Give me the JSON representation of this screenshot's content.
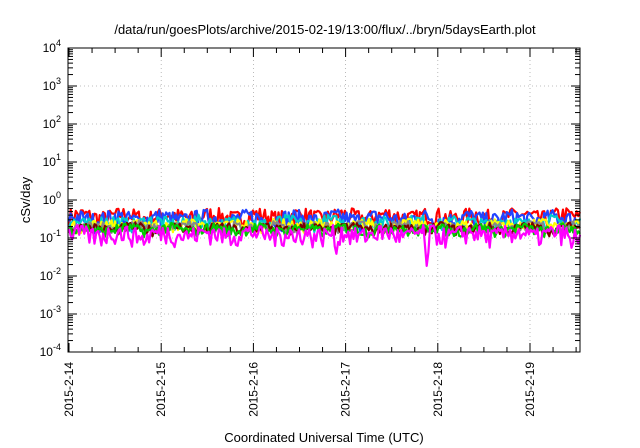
{
  "chart_data": {
    "type": "line",
    "title": "/data/run/goesPlots/archive/2015-02-19/13:00/flux/../bryn/5daysEarth.plot",
    "xlabel": "Coordinated Universal Time (UTC)",
    "ylabel": "cSv/day",
    "yscale": "log",
    "ylim": [
      0.0001,
      10000
    ],
    "xlim": [
      "2015-02-14 00:00",
      "2015-02-19 13:00"
    ],
    "x_ticks": [
      "2015-2-14",
      "2015-2-15",
      "2015-2-16",
      "2015-2-17",
      "2015-2-18",
      "2015-2-19"
    ],
    "y_ticks": [
      {
        "value": 0.0001,
        "base": "10",
        "exp": "-4"
      },
      {
        "value": 0.001,
        "base": "10",
        "exp": "-3"
      },
      {
        "value": 0.01,
        "base": "10",
        "exp": "-2"
      },
      {
        "value": 0.1,
        "base": "10",
        "exp": "-1"
      },
      {
        "value": 1,
        "base": "10",
        "exp": "0"
      },
      {
        "value": 10,
        "base": "10",
        "exp": "1"
      },
      {
        "value": 100,
        "base": "10",
        "exp": "2"
      },
      {
        "value": 1000,
        "base": "10",
        "exp": "3"
      },
      {
        "value": 10000,
        "base": "10",
        "exp": "4"
      }
    ],
    "grid": true,
    "series": [
      {
        "color": "#ff0000",
        "base": 0.38,
        "jitter": 0.22,
        "dips": []
      },
      {
        "color": "#2244ff",
        "base": 0.33,
        "jitter": 0.2,
        "dips": []
      },
      {
        "color": "#00cccc",
        "base": 0.26,
        "jitter": 0.12,
        "dips": []
      },
      {
        "color": "#ffff00",
        "base": 0.22,
        "jitter": 0.08,
        "dips": []
      },
      {
        "color": "#888888",
        "base": 0.2,
        "jitter": 0.06,
        "dips": []
      },
      {
        "color": "#7a0000",
        "base": 0.18,
        "jitter": 0.06,
        "dips": []
      },
      {
        "color": "#00cc00",
        "base": 0.17,
        "jitter": 0.06,
        "dips": []
      },
      {
        "color": "#ff00ff",
        "base": 0.13,
        "jitter": 0.08,
        "dips": [
          {
            "x": 0.82,
            "y": 0.065
          },
          {
            "x": 2.45,
            "y": 0.065
          },
          {
            "x": 2.9,
            "y": 0.038
          },
          {
            "x": 3.88,
            "y": 0.018
          },
          {
            "x": 5.45,
            "y": 0.055
          }
        ]
      }
    ]
  }
}
